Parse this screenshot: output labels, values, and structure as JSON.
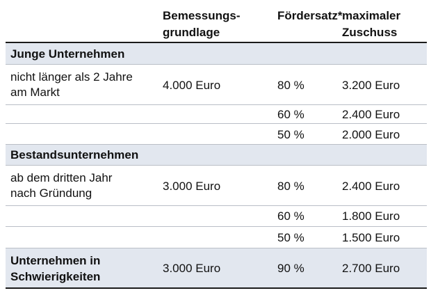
{
  "headers": {
    "col1": "",
    "col2_line1": "Bemessungs-",
    "col2_line2": "grundlage",
    "col3": "Fördersatz*",
    "col4_line1": "maximaler",
    "col4_line2": "Zuschuss"
  },
  "sections": [
    {
      "title": "Junge Unternehmen",
      "rows": [
        {
          "label_line1": "nicht länger als 2 Jahre",
          "label_line2": "am Markt",
          "basis": "4.000 Euro",
          "rate": "80 %",
          "max": "3.200 Euro"
        },
        {
          "label_line1": "",
          "label_line2": "",
          "basis": "",
          "rate": "60 %",
          "max": "2.400 Euro"
        },
        {
          "label_line1": "",
          "label_line2": "",
          "basis": "",
          "rate": "50 %",
          "max": "2.000 Euro"
        }
      ]
    },
    {
      "title": "Bestandsunternehmen",
      "rows": [
        {
          "label_line1": "ab dem dritten Jahr",
          "label_line2": "nach Gründung",
          "basis": "3.000 Euro",
          "rate": "80 %",
          "max": "2.400 Euro"
        },
        {
          "label_line1": "",
          "label_line2": "",
          "basis": "",
          "rate": "60 %",
          "max": "1.800 Euro"
        },
        {
          "label_line1": "",
          "label_line2": "",
          "basis": "",
          "rate": "50 %",
          "max": "1.500 Euro"
        }
      ]
    }
  ],
  "final_row": {
    "label_line1": "Unternehmen in",
    "label_line2": "Schwierigkeiten",
    "basis": "3.000 Euro",
    "rate": "90 %",
    "max": "2.700 Euro"
  }
}
